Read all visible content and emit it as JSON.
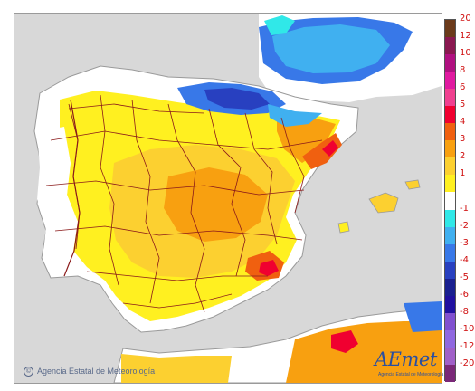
{
  "map": {
    "colors": {
      "background": "#d8d8d8",
      "land_white": "#ffffff",
      "border_line": "#8b1a1a",
      "coast_line": "#9a9a9a"
    },
    "anomaly_regions": [
      {
        "name": "cantabrian-cold",
        "value": -4
      },
      {
        "name": "pyrenees-cold",
        "value": -2
      },
      {
        "name": "gulf-of-biscay-cold",
        "value": -3
      },
      {
        "name": "ebro-warm",
        "value": 3
      },
      {
        "name": "castilla-la-mancha-warm",
        "value": 3
      },
      {
        "name": "andalusia-warm",
        "value": 2
      },
      {
        "name": "murcia-hot",
        "value": 4
      },
      {
        "name": "valencia-coast-hot",
        "value": 5
      },
      {
        "name": "algeria-hot",
        "value": 5
      }
    ]
  },
  "legend": {
    "items": [
      {
        "label": "20",
        "color": "#6b3a1a"
      },
      {
        "label": "12",
        "color": "#8a1850"
      },
      {
        "label": "10",
        "color": "#b01080"
      },
      {
        "label": "8",
        "color": "#e01aa0"
      },
      {
        "label": "6",
        "color": "#f04090"
      },
      {
        "label": "5",
        "color": "#f00030"
      },
      {
        "label": "4",
        "color": "#f06010"
      },
      {
        "label": "3",
        "color": "#f8a010"
      },
      {
        "label": "2",
        "color": "#fcd030"
      },
      {
        "label": "1",
        "color": "#fff020"
      },
      {
        "label": "",
        "color": "#ffffff"
      },
      {
        "label": "-1",
        "color": "#30e8e8"
      },
      {
        "label": "-2",
        "color": "#40b0f0"
      },
      {
        "label": "-3",
        "color": "#3878e8"
      },
      {
        "label": "-4",
        "color": "#2840c0"
      },
      {
        "label": "-5",
        "color": "#1a2090"
      },
      {
        "label": "-6",
        "color": "#2010a0"
      },
      {
        "label": "-8",
        "color": "#8050d0"
      },
      {
        "label": "-10",
        "color": "#9068e0"
      },
      {
        "label": "-12",
        "color": "#a060c8"
      },
      {
        "label": "-20",
        "color": "#7a2878"
      }
    ]
  },
  "footer": {
    "copyright_symbol": "©",
    "copyright": "Agencia Estatal de Meteorología",
    "logo_word": "AEmet",
    "logo_sub": "Agencia Estatal de Meteorología"
  }
}
